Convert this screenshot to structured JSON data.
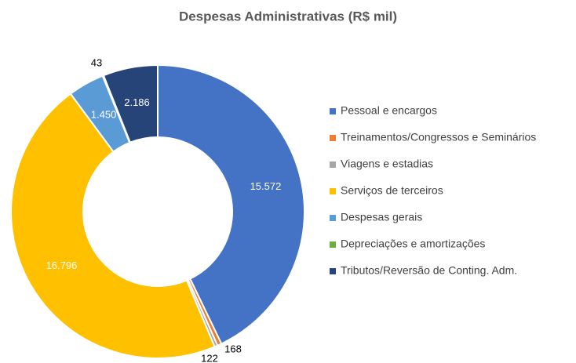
{
  "chart_data": {
    "type": "donut",
    "title": "Despesas Administrativas (R$ mil)",
    "categories": [
      "Pessoal e encargos",
      "Treinamentos/Congressos e Seminários",
      "Viagens e estadias",
      "Serviços de terceiros",
      "Despesas gerais",
      "Depreciações e amortizações",
      "Tributos/Reversão de Conting. Adm."
    ],
    "values": [
      15572,
      168,
      122,
      16796,
      1450,
      43,
      2186
    ],
    "value_labels": [
      "15.572",
      "168",
      "122",
      "16.796",
      "1.450",
      "43",
      "2.186"
    ],
    "colors": [
      "#4472c4",
      "#ed7d31",
      "#a5a5a5",
      "#ffc000",
      "#5b9bd5",
      "#70ad47",
      "#264478"
    ],
    "legend": "right"
  }
}
